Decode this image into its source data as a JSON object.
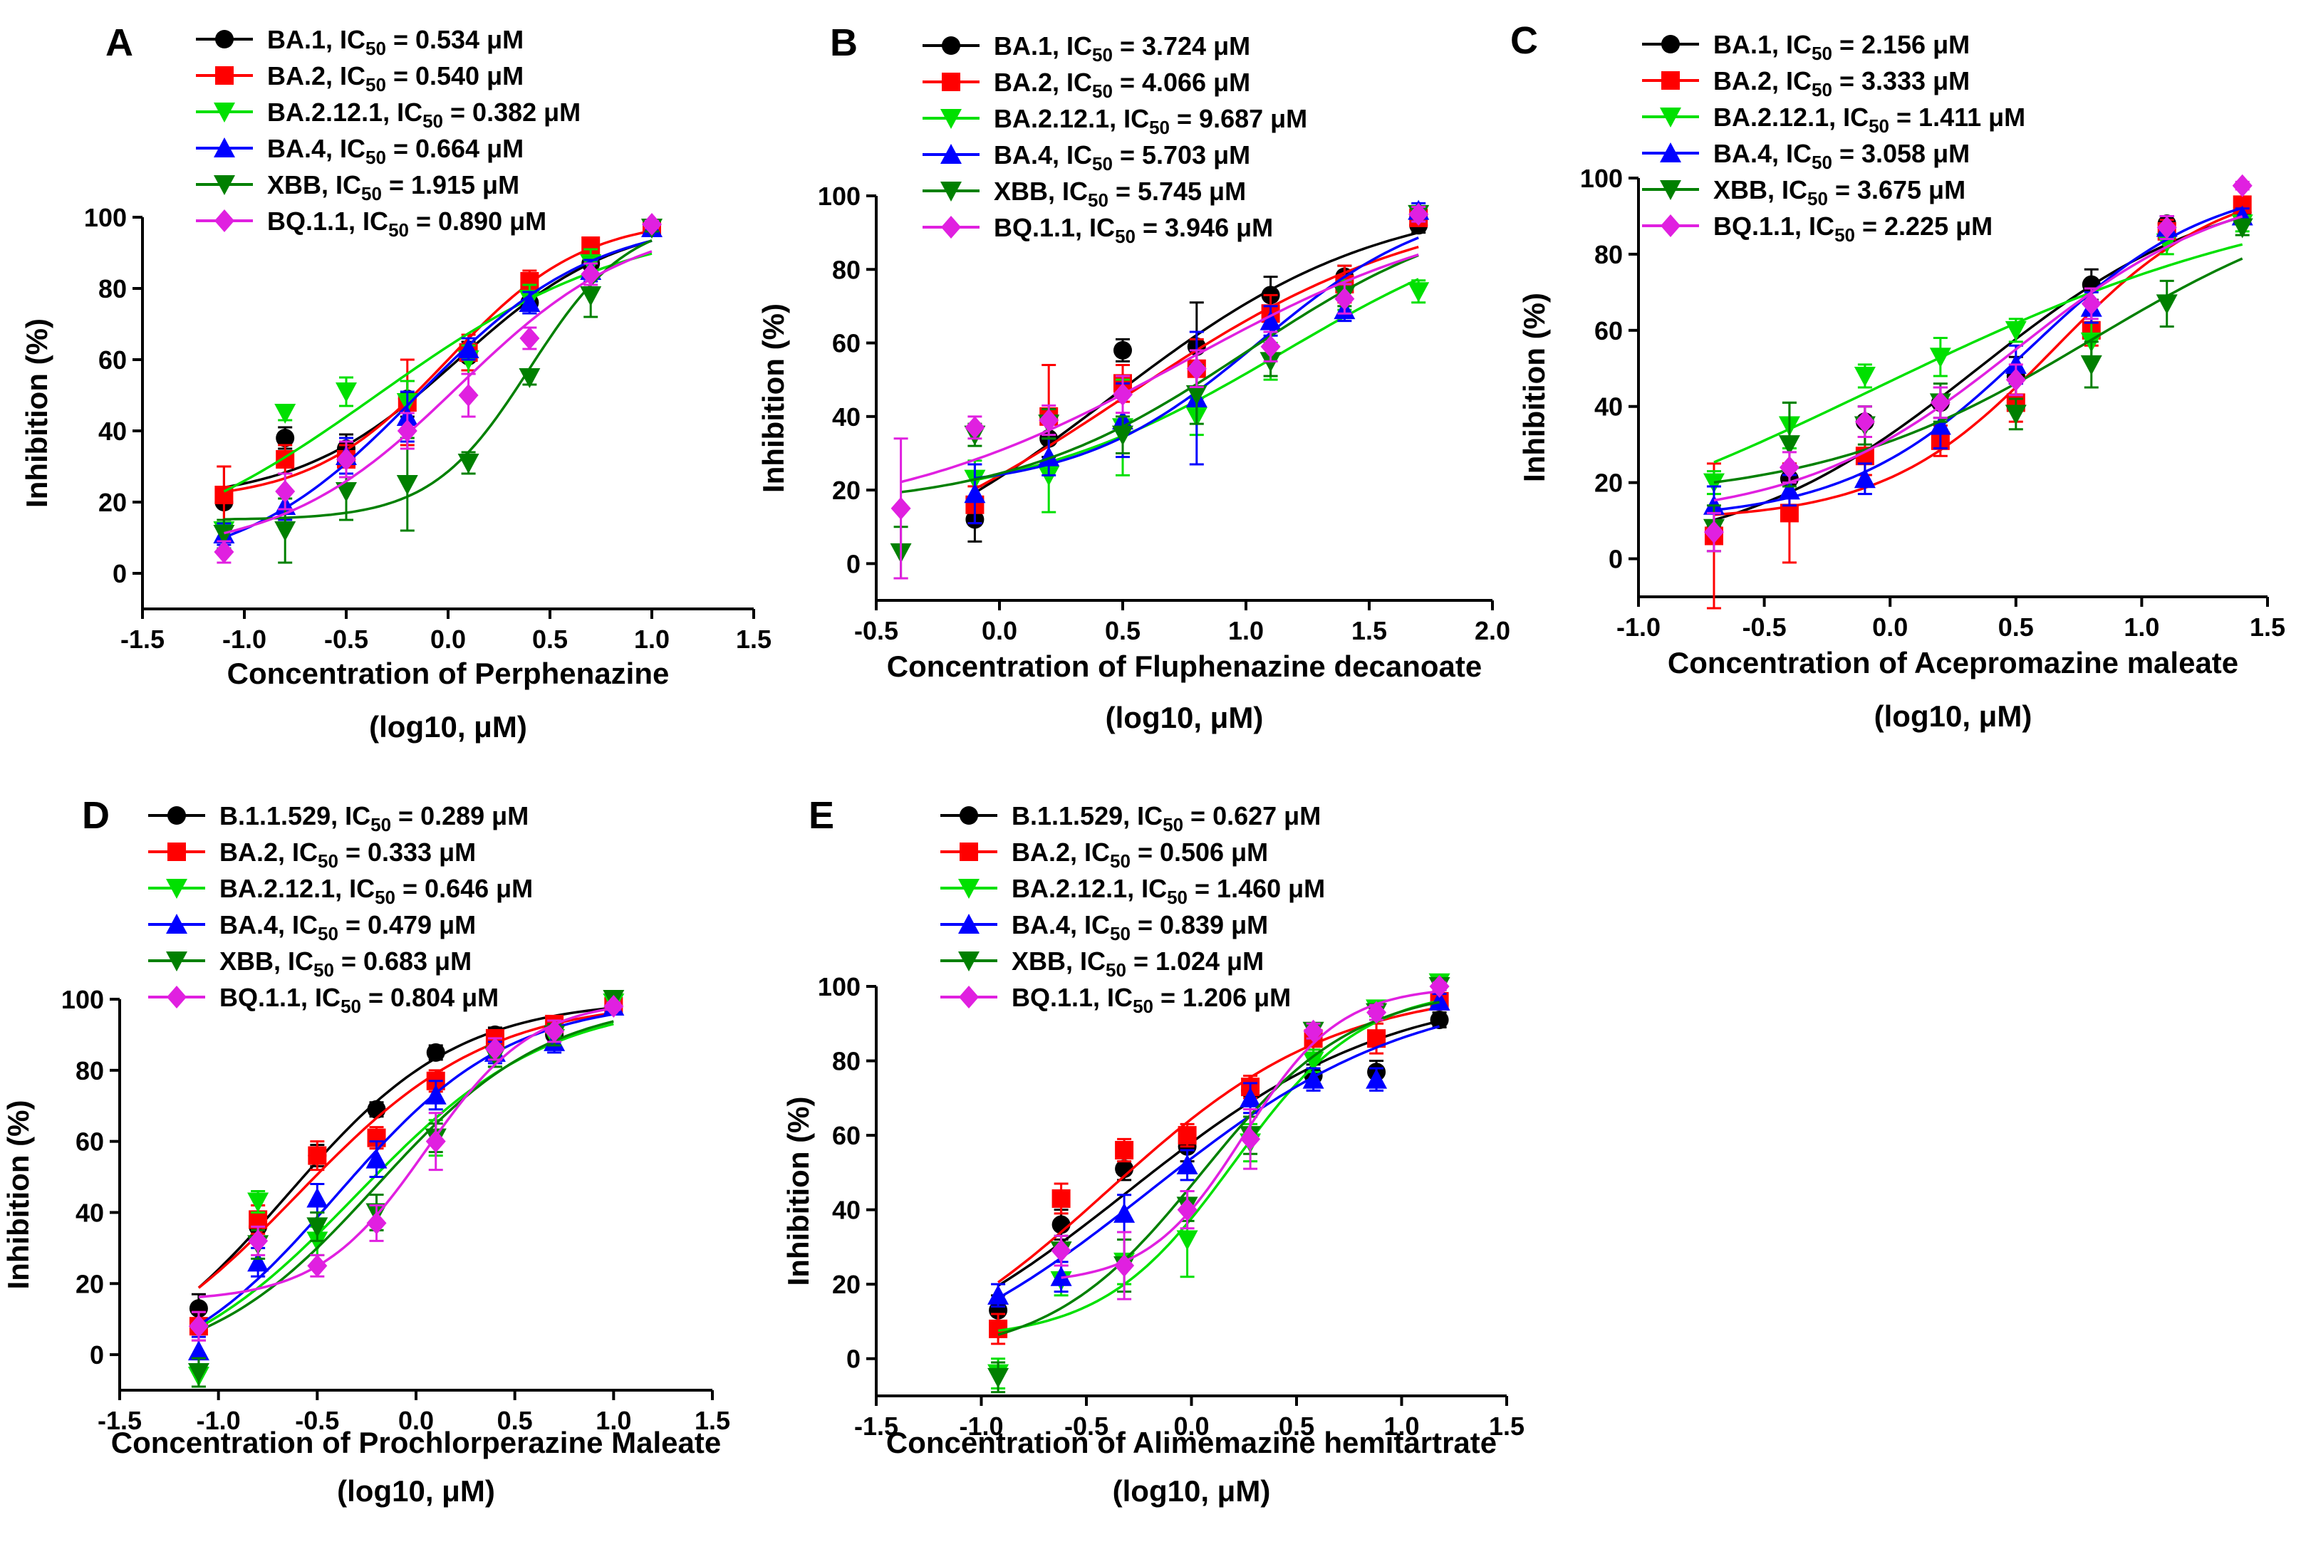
{
  "chart_data": [
    {
      "type": "scatter",
      "panel": "A",
      "xlabel": "Concentration of Perphenazine",
      "xlabel2": "(log10, μM)",
      "ylabel": "Inhibition (%)",
      "xlim": [
        -1.5,
        1.5
      ],
      "ylim": [
        -10,
        100
      ],
      "xticks": [
        -1.5,
        -1.0,
        -0.5,
        0.0,
        0.5,
        1.0,
        1.5
      ],
      "yticks": [
        0,
        20,
        40,
        60,
        80,
        100
      ],
      "x": [
        -1.1,
        -0.8,
        -0.5,
        -0.2,
        0.1,
        0.4,
        0.7,
        1.0
      ],
      "series": [
        {
          "name": "BA.1",
          "ic50": "0.534",
          "color": "#000000",
          "marker": "circle",
          "values": [
            20,
            38,
            35,
            49,
            61,
            76,
            87,
            97
          ],
          "errors": [
            10,
            3,
            4,
            5,
            4,
            3,
            3,
            1
          ]
        },
        {
          "name": "BA.2",
          "ic50": "0.540",
          "color": "#ff0000",
          "marker": "square",
          "values": [
            22,
            32,
            32,
            48,
            62,
            82,
            92,
            97
          ],
          "errors": [
            8,
            4,
            4,
            12,
            5,
            3,
            2,
            1
          ]
        },
        {
          "name": "BA.2.12.1",
          "ic50": "0.382",
          "color": "#00e000",
          "marker": "triangle-down",
          "values": [
            12,
            45,
            51,
            48,
            60,
            77,
            87,
            97
          ],
          "errors": [
            3,
            2,
            4,
            6,
            4,
            4,
            4,
            1
          ]
        },
        {
          "name": "BA.4",
          "ic50": "0.664",
          "color": "#0000ff",
          "marker": "triangle-up",
          "values": [
            11,
            19,
            33,
            44,
            63,
            76,
            85,
            97
          ],
          "errors": [
            3,
            4,
            5,
            7,
            3,
            3,
            3,
            1
          ]
        },
        {
          "name": "XBB",
          "ic50": "1.915",
          "color": "#008000",
          "marker": "triangle-down",
          "values": [
            11,
            12,
            23,
            25,
            31,
            55,
            78,
            97
          ],
          "errors": [
            4,
            9,
            8,
            13,
            3,
            2,
            6,
            1
          ]
        },
        {
          "name": "BQ.1.1",
          "ic50": "0.890",
          "color": "#e020e0",
          "marker": "diamond",
          "values": [
            6,
            23,
            32,
            40,
            50,
            66,
            84,
            98
          ],
          "errors": [
            3,
            5,
            5,
            5,
            6,
            3,
            3,
            1
          ]
        }
      ]
    },
    {
      "type": "scatter",
      "panel": "B",
      "xlabel": "Concentration of Fluphenazine decanoate",
      "xlabel2": "(log10, μM)",
      "ylabel": "Inhibition (%)",
      "xlim": [
        -0.5,
        2.0
      ],
      "ylim": [
        -10,
        100
      ],
      "xticks": [
        -0.5,
        0.0,
        0.5,
        1.0,
        1.5,
        2.0
      ],
      "yticks": [
        0,
        20,
        40,
        60,
        80,
        100
      ],
      "x": [
        -0.4,
        -0.1,
        0.2,
        0.5,
        0.8,
        1.1,
        1.4,
        1.7
      ],
      "series": [
        {
          "name": "BA.1",
          "ic50": "3.724",
          "color": "#000000",
          "marker": "circle",
          "values": [
            null,
            12,
            34,
            58,
            59,
            73,
            78,
            92
          ],
          "errors": [
            0,
            6,
            5,
            3,
            12,
            5,
            3,
            2
          ]
        },
        {
          "name": "BA.2",
          "ic50": "4.066",
          "color": "#ff0000",
          "marker": "square",
          "values": [
            null,
            16,
            40,
            49,
            53,
            68,
            76,
            94
          ],
          "errors": [
            0,
            5,
            14,
            5,
            8,
            5,
            5,
            2
          ]
        },
        {
          "name": "BA.2.12.1",
          "ic50": "9.687",
          "color": "#00e000",
          "marker": "triangle-down",
          "values": [
            null,
            23,
            24,
            37,
            40,
            55,
            73,
            74
          ],
          "errors": [
            0,
            5,
            10,
            13,
            5,
            5,
            4,
            3
          ]
        },
        {
          "name": "BA.4",
          "ic50": "5.703",
          "color": "#0000ff",
          "marker": "triangle-up",
          "values": [
            null,
            19,
            29,
            39,
            45,
            66,
            69,
            96
          ],
          "errors": [
            0,
            8,
            5,
            10,
            18,
            4,
            3,
            2
          ]
        },
        {
          "name": "XBB",
          "ic50": "5.745",
          "color": "#008000",
          "marker": "triangle-down",
          "values": [
            3,
            35,
            38,
            35,
            46,
            55,
            73,
            95
          ],
          "errors": [
            7,
            3,
            4,
            5,
            8,
            4,
            3,
            2
          ]
        },
        {
          "name": "BQ.1.1",
          "ic50": "3.946",
          "color": "#e020e0",
          "marker": "diamond",
          "values": [
            15,
            37,
            39,
            46,
            53,
            59,
            72,
            95
          ],
          "errors": [
            19,
            3,
            4,
            5,
            5,
            4,
            4,
            2
          ]
        }
      ]
    },
    {
      "type": "scatter",
      "panel": "C",
      "xlabel": "Concentration of Acepromazine maleate",
      "xlabel2": "(log10, μM)",
      "ylabel": "Inhibition (%)",
      "xlim": [
        -1.0,
        1.5
      ],
      "ylim": [
        -10,
        100
      ],
      "xticks": [
        -1.0,
        -0.5,
        0.0,
        0.5,
        1.0,
        1.5
      ],
      "yticks": [
        0,
        20,
        40,
        60,
        80,
        100
      ],
      "x": [
        -0.7,
        -0.4,
        -0.1,
        0.2,
        0.5,
        0.8,
        1.1,
        1.4
      ],
      "series": [
        {
          "name": "BA.1",
          "ic50": "2.156",
          "color": "#000000",
          "marker": "circle",
          "values": [
            7,
            21,
            36,
            41,
            48,
            72,
            88,
            91
          ],
          "errors": [
            5,
            4,
            4,
            4,
            5,
            4,
            2,
            2
          ]
        },
        {
          "name": "BA.2",
          "ic50": "3.333",
          "color": "#ff0000",
          "marker": "square",
          "values": [
            6,
            12,
            27,
            31,
            41,
            60,
            86,
            93
          ],
          "errors": [
            19,
            13,
            5,
            4,
            5,
            4,
            3,
            2
          ]
        },
        {
          "name": "BA.2.12.1",
          "ic50": "1.411",
          "color": "#00e000",
          "marker": "triangle-down",
          "values": [
            20,
            35,
            48,
            53,
            60,
            57,
            83,
            88
          ],
          "errors": [
            3,
            6,
            3,
            5,
            3,
            5,
            3,
            2
          ]
        },
        {
          "name": "BA.4",
          "ic50": "3.058",
          "color": "#0000ff",
          "marker": "triangle-up",
          "values": [
            14,
            18,
            21,
            35,
            51,
            66,
            87,
            90
          ],
          "errors": [
            5,
            4,
            4,
            6,
            5,
            4,
            3,
            2
          ]
        },
        {
          "name": "XBB",
          "ic50": "3.675",
          "color": "#008000",
          "marker": "triangle-down",
          "values": [
            8,
            30,
            35,
            41,
            38,
            51,
            67,
            87
          ],
          "errors": [
            6,
            11,
            5,
            5,
            4,
            6,
            6,
            2
          ]
        },
        {
          "name": "BQ.1.1",
          "ic50": "2.225",
          "color": "#e020e0",
          "marker": "diamond",
          "values": [
            7,
            24,
            36,
            41,
            47,
            67,
            87,
            98
          ],
          "errors": [
            5,
            4,
            4,
            4,
            4,
            4,
            3,
            1
          ]
        }
      ]
    },
    {
      "type": "scatter",
      "panel": "D",
      "xlabel": "Concentration of Prochlorperazine Maleate",
      "xlabel2": "(log10, μM)",
      "ylabel": "Inhibition (%)",
      "xlim": [
        -1.5,
        1.5
      ],
      "ylim": [
        -10,
        100
      ],
      "xticks": [
        -1.5,
        -1.0,
        -0.5,
        0.0,
        0.5,
        1.0,
        1.5
      ],
      "yticks": [
        0,
        20,
        40,
        60,
        80,
        100
      ],
      "x": [
        -1.1,
        -0.8,
        -0.5,
        -0.2,
        0.1,
        0.4,
        0.7,
        1.0
      ],
      "series": [
        {
          "name": "B.1.1.529",
          "ic50": "0.289",
          "color": "#000000",
          "marker": "circle",
          "values": [
            13,
            36,
            56,
            69,
            85,
            90,
            90,
            98
          ],
          "errors": [
            4,
            4,
            3,
            2,
            2,
            2,
            4,
            1
          ]
        },
        {
          "name": "BA.2",
          "ic50": "0.333",
          "color": "#ff0000",
          "marker": "square",
          "values": [
            8,
            38,
            56,
            61,
            77,
            89,
            93,
            98
          ],
          "errors": [
            4,
            4,
            4,
            3,
            3,
            2,
            2,
            1
          ]
        },
        {
          "name": "BA.2.12.1",
          "ic50": "0.646",
          "color": "#00e000",
          "marker": "triangle-down",
          "values": [
            -6,
            43,
            32,
            40,
            61,
            84,
            89,
            99
          ],
          "errors": [
            3,
            3,
            4,
            5,
            5,
            3,
            3,
            1
          ]
        },
        {
          "name": "BA.4",
          "ic50": "0.479",
          "color": "#0000ff",
          "marker": "triangle-up",
          "values": [
            1,
            26,
            44,
            55,
            73,
            85,
            88,
            98
          ],
          "errors": [
            4,
            4,
            4,
            5,
            4,
            3,
            3,
            1
          ]
        },
        {
          "name": "XBB",
          "ic50": "0.683",
          "color": "#008000",
          "marker": "triangle-down",
          "values": [
            -5,
            31,
            36,
            40,
            61,
            84,
            90,
            100
          ],
          "errors": [
            4,
            4,
            4,
            5,
            4,
            3,
            3,
            1
          ]
        },
        {
          "name": "BQ.1.1",
          "ic50": "0.804",
          "color": "#e020e0",
          "marker": "diamond",
          "values": [
            8,
            32,
            25,
            37,
            60,
            86,
            91,
            98
          ],
          "errors": [
            4,
            4,
            3,
            5,
            8,
            3,
            3,
            1
          ]
        }
      ]
    },
    {
      "type": "scatter",
      "panel": "E",
      "xlabel": "Concentration of Alimemazine hemitartrate",
      "xlabel2": "(log10, μM)",
      "ylabel": "Inhibition (%)",
      "xlim": [
        -1.5,
        1.5
      ],
      "ylim": [
        -10,
        100
      ],
      "xticks": [
        -1.5,
        -1.0,
        -0.5,
        0.0,
        0.5,
        1.0,
        1.5
      ],
      "yticks": [
        0,
        20,
        40,
        60,
        80,
        100
      ],
      "x": [
        -0.92,
        -0.62,
        -0.32,
        -0.02,
        0.28,
        0.58,
        0.88,
        1.18
      ],
      "series": [
        {
          "name": "B.1.1.529",
          "ic50": "0.627",
          "color": "#000000",
          "marker": "circle",
          "values": [
            13,
            36,
            51,
            57,
            72,
            76,
            77,
            91
          ],
          "errors": [
            4,
            4,
            3,
            4,
            3,
            3,
            3,
            2
          ]
        },
        {
          "name": "BA.2",
          "ic50": "0.506",
          "color": "#ff0000",
          "marker": "square",
          "values": [
            8,
            43,
            56,
            60,
            73,
            86,
            86,
            96
          ],
          "errors": [
            4,
            4,
            3,
            3,
            3,
            3,
            4,
            2
          ]
        },
        {
          "name": "BA.2.12.1",
          "ic50": "1.460",
          "color": "#00e000",
          "marker": "triangle-down",
          "values": [
            -4,
            21,
            26,
            32,
            58,
            80,
            94,
            101
          ],
          "errors": [
            4,
            4,
            6,
            10,
            5,
            3,
            2,
            1
          ]
        },
        {
          "name": "BA.4",
          "ic50": "0.839",
          "color": "#0000ff",
          "marker": "triangle-up",
          "values": [
            17,
            22,
            39,
            52,
            70,
            75,
            75,
            96
          ],
          "errors": [
            3,
            4,
            5,
            4,
            4,
            3,
            3,
            2
          ]
        },
        {
          "name": "XBB",
          "ic50": "1.024",
          "color": "#008000",
          "marker": "triangle-down",
          "values": [
            -5,
            29,
            25,
            41,
            60,
            88,
            93,
            100
          ],
          "errors": [
            4,
            4,
            7,
            4,
            5,
            2,
            2,
            1
          ]
        },
        {
          "name": "BQ.1.1",
          "ic50": "1.206",
          "color": "#e020e0",
          "marker": "diamond",
          "values": [
            null,
            29,
            25,
            40,
            59,
            88,
            93,
            100
          ],
          "errors": [
            0,
            4,
            9,
            5,
            8,
            2,
            2,
            1
          ]
        }
      ]
    }
  ],
  "legend_prefix": "IC",
  "legend_sub": "50",
  "legend_suffix": " μM"
}
